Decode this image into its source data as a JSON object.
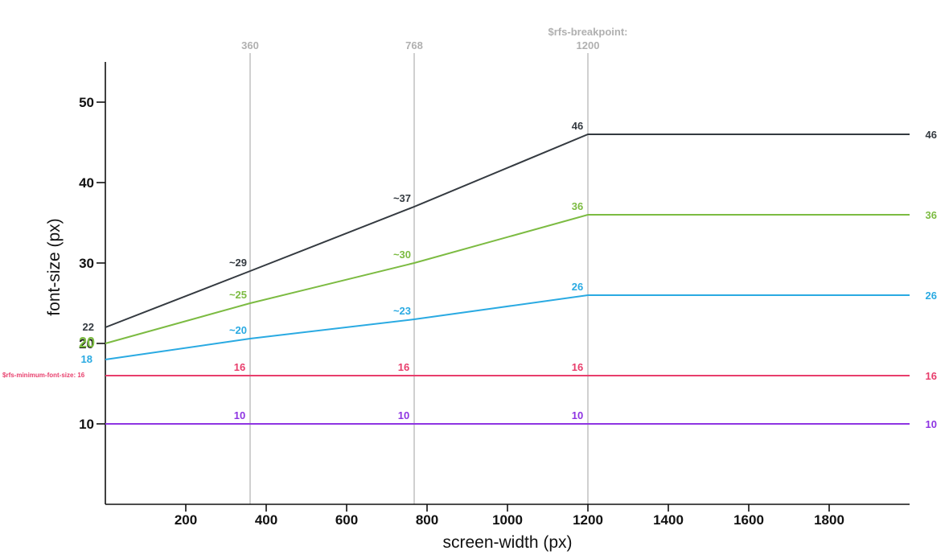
{
  "chart_data": {
    "type": "line",
    "xlabel": "screen-width (px)",
    "ylabel": "font-size (px)",
    "xlim": [
      0,
      2000
    ],
    "ylim": [
      0,
      55
    ],
    "x_ticks": [
      200,
      400,
      600,
      800,
      1000,
      1200,
      1400,
      1600,
      1800
    ],
    "y_ticks": [
      10,
      20,
      30,
      40,
      50
    ],
    "reference_lines": [
      {
        "x": 360,
        "label": [
          "360"
        ]
      },
      {
        "x": 768,
        "label": [
          "768"
        ]
      },
      {
        "x": 1200,
        "label": [
          "$rfs-breakpoint:",
          "1200"
        ]
      }
    ],
    "series": [
      {
        "color": "#343a40",
        "x": [
          0,
          360,
          768,
          1200,
          2000
        ],
        "y": [
          22,
          29,
          37,
          46,
          46
        ],
        "start_label": "22",
        "point_labels": [
          {
            "x": 360,
            "text": "~29"
          },
          {
            "x": 768,
            "text": "~37"
          },
          {
            "x": 1200,
            "text": "46"
          }
        ],
        "end_label": "46"
      },
      {
        "color": "#7cbb42",
        "x": [
          0,
          360,
          768,
          1200,
          2000
        ],
        "y": [
          20,
          25,
          30,
          36,
          36
        ],
        "start_label": "20",
        "point_labels": [
          {
            "x": 360,
            "text": "~25"
          },
          {
            "x": 768,
            "text": "~30"
          },
          {
            "x": 1200,
            "text": "36"
          }
        ],
        "end_label": "36"
      },
      {
        "color": "#2aaae2",
        "x": [
          0,
          360,
          768,
          1200,
          2000
        ],
        "y": [
          18,
          20.6,
          23,
          26,
          26
        ],
        "start_label": "18",
        "point_labels": [
          {
            "x": 360,
            "text": "~20"
          },
          {
            "x": 768,
            "text": "~23"
          },
          {
            "x": 1200,
            "text": "26"
          }
        ],
        "end_label": "26"
      },
      {
        "color": "#e83e6c",
        "x": [
          0,
          2000
        ],
        "y": [
          16,
          16
        ],
        "start_label": "$rfs-minimum-font-size: 16",
        "point_labels": [
          {
            "x": 360,
            "text": "16"
          },
          {
            "x": 768,
            "text": "16"
          },
          {
            "x": 1200,
            "text": "16"
          }
        ],
        "end_label": "16"
      },
      {
        "color": "#8e34e2",
        "x": [
          0,
          2000
        ],
        "y": [
          10,
          10
        ],
        "start_label": "",
        "point_labels": [
          {
            "x": 360,
            "text": "10"
          },
          {
            "x": 768,
            "text": "10"
          },
          {
            "x": 1200,
            "text": "10"
          }
        ],
        "end_label": "10"
      }
    ]
  }
}
